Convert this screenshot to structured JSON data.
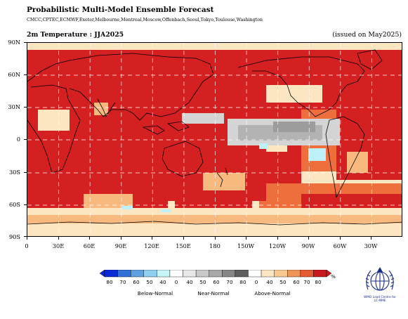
{
  "header": {
    "title": "Probabilistic Multi-Model Ensemble Forecast",
    "contributors": "CMCC,CPTEC,ECMWF,Exeter,Melbourne,Montreal,Moscow,Offenbach,Seoul,Tokyo,Toulouse,Washington",
    "variable": "2m Temperature : JJA2025",
    "issued": "(issued on May2025)"
  },
  "map": {
    "lat_labels": [
      "90N",
      "60N",
      "30N",
      "0",
      "30S",
      "60S",
      "90S"
    ],
    "lon_labels": [
      "0",
      "30E",
      "60E",
      "90E",
      "120E",
      "150E",
      "180",
      "150W",
      "120W",
      "90W",
      "60W",
      "30W"
    ],
    "colors": {
      "above_strong": "#d42020",
      "above_mid": "#ee6f3c",
      "above_light": "#f8b97f",
      "above_faint": "#fbe6c1",
      "near_light": "#d4d4d4",
      "near_mid": "#b3b3b3",
      "below_light": "#bdf0f8",
      "coast": "#000000",
      "grid": "#ffffff"
    }
  },
  "legend": {
    "numbers": [
      "80",
      "70",
      "60",
      "50",
      "40",
      "0",
      "40",
      "50",
      "60",
      "70",
      "80",
      "0",
      "40",
      "50",
      "60",
      "70",
      "80"
    ],
    "categories": [
      "Below-Normal",
      "Near-Normal",
      "Above-Normal"
    ],
    "unit": "%",
    "swatches": [
      "#0a2ad6",
      "#2f6fd6",
      "#5fa0e0",
      "#8fd0f0",
      "#c8f4f8",
      "#ffffff",
      "#e8e8e8",
      "#c8c8c8",
      "#a8a8a8",
      "#868686",
      "#5e5e5e",
      "#ffffff",
      "#fbe6c1",
      "#f8c890",
      "#f0955a",
      "#e35a33",
      "#c8191e"
    ]
  },
  "logo": {
    "line1": "WMO Lead Centre for",
    "line2": "LC-MME"
  }
}
